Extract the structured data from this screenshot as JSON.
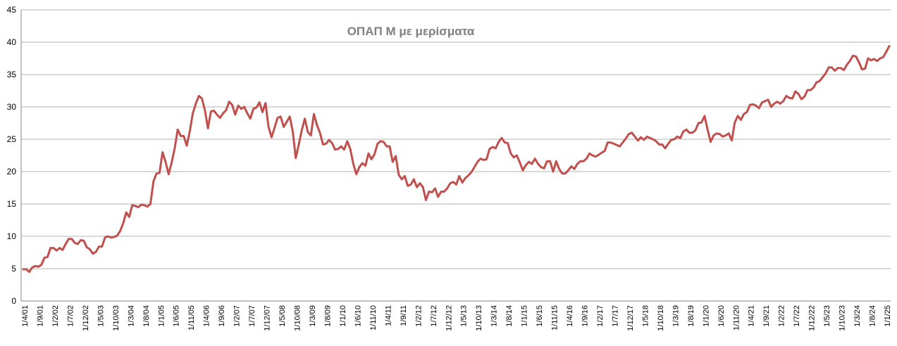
{
  "chart_data": {
    "type": "line",
    "title": "ΟΠΑΠ Μ με μερίσματα",
    "xlabel": "",
    "ylabel": "",
    "ylim": [
      0,
      45
    ],
    "yticks": [
      0,
      5,
      10,
      15,
      20,
      25,
      30,
      35,
      40,
      45
    ],
    "grid": true,
    "legend": "none",
    "line_color": "#c0504d",
    "x_tick_labels": [
      "1/4/01",
      "1/9/01",
      "1/2/02",
      "1/7/02",
      "1/12/02",
      "1/5/03",
      "1/10/03",
      "1/3/04",
      "1/8/04",
      "1/1/05",
      "1/6/05",
      "1/11/05",
      "1/4/06",
      "1/9/06",
      "1/2/07",
      "1/7/07",
      "1/12/07",
      "1/5/08",
      "1/10/08",
      "1/3/09",
      "1/8/09",
      "1/1/10",
      "1/6/10",
      "1/11/10",
      "1/4/11",
      "1/9/11",
      "1/2/12",
      "1/7/12",
      "1/12/12",
      "1/5/13",
      "1/10/13",
      "1/3/14",
      "1/8/14",
      "1/1/15",
      "1/6/15",
      "1/11/15",
      "1/4/16",
      "1/9/16",
      "1/2/17",
      "1/7/17",
      "1/12/17",
      "1/5/18",
      "1/10/18",
      "1/3/19",
      "1/8/19",
      "1/1/20",
      "1/6/20",
      "1/11/20",
      "1/4/21",
      "1/9/21",
      "1/2/22",
      "1/7/22",
      "1/12/22",
      "1/5/23",
      "1/10/23",
      "1/3/24",
      "1/8/24",
      "1/1/25"
    ],
    "series": [
      {
        "values": [
          4.9,
          4.9,
          4.5,
          5.2,
          5.4,
          5.3,
          5.6,
          6.7,
          6.8,
          8.2,
          8.2,
          7.8,
          8.2,
          7.9,
          8.8,
          9.6,
          9.6,
          9.0,
          8.8,
          9.4,
          9.3,
          8.3,
          8.0,
          7.3,
          7.6,
          8.4,
          8.4,
          9.8,
          10.0,
          9.8,
          9.9,
          10.1,
          10.8,
          12.0,
          13.7,
          13.0,
          14.8,
          14.7,
          14.5,
          14.9,
          14.8,
          14.6,
          15.0,
          18.5,
          19.7,
          19.8,
          23.0,
          21.5,
          19.6,
          21.4,
          23.6,
          26.5,
          25.5,
          25.5,
          24.0,
          26.2,
          29.0,
          30.5,
          31.7,
          31.3,
          29.5,
          26.7,
          29.3,
          29.4,
          28.8,
          28.3,
          29.0,
          29.5,
          30.8,
          30.3,
          28.8,
          30.2,
          29.7,
          30.0,
          29.0,
          28.2,
          29.7,
          29.9,
          30.7,
          29.2,
          30.6,
          26.9,
          25.3,
          26.8,
          28.3,
          28.5,
          26.9,
          27.7,
          28.5,
          26.2,
          22.1,
          24.2,
          26.4,
          28.2,
          26.1,
          25.6,
          28.9,
          27.2,
          26.0,
          24.2,
          24.3,
          24.9,
          24.4,
          23.4,
          23.5,
          23.9,
          23.4,
          24.7,
          23.5,
          21.2,
          19.6,
          20.7,
          21.3,
          20.9,
          22.8,
          21.9,
          22.7,
          24.3,
          24.7,
          24.6,
          23.9,
          23.9,
          21.5,
          22.4,
          19.5,
          18.8,
          19.3,
          17.8,
          18.0,
          18.8,
          17.6,
          18.2,
          17.6,
          15.6,
          16.9,
          16.8,
          17.4,
          16.1,
          16.9,
          16.9,
          17.4,
          18.2,
          18.4,
          18.0,
          19.3,
          18.3,
          19.0,
          19.4,
          19.9,
          20.7,
          21.5,
          22.0,
          21.8,
          21.9,
          23.5,
          23.8,
          23.6,
          24.6,
          25.2,
          24.5,
          24.4,
          22.8,
          22.2,
          22.5,
          21.4,
          20.2,
          21.0,
          21.5,
          21.2,
          22.0,
          21.2,
          20.7,
          20.5,
          21.6,
          21.6,
          20.0,
          21.6,
          20.4,
          19.7,
          19.7,
          20.2,
          20.8,
          20.4,
          21.2,
          21.6,
          21.6,
          22.0,
          22.8,
          22.5,
          22.3,
          22.6,
          22.9,
          23.2,
          24.5,
          24.5,
          24.3,
          24.1,
          23.9,
          24.5,
          25.1,
          25.8,
          26.0,
          25.4,
          24.8,
          25.3,
          24.9,
          25.4,
          25.2,
          25.0,
          24.7,
          24.2,
          24.2,
          23.6,
          24.3,
          24.9,
          25.0,
          25.4,
          25.2,
          26.2,
          26.5,
          26.0,
          26.0,
          26.4,
          27.5,
          27.6,
          28.6,
          26.5,
          24.6,
          25.6,
          25.9,
          25.8,
          25.4,
          25.6,
          25.9,
          24.8,
          27.6,
          28.6,
          28.0,
          28.9,
          29.2,
          30.3,
          30.4,
          30.2,
          29.8,
          30.7,
          30.9,
          31.1,
          30.0,
          30.5,
          30.8,
          30.5,
          30.9,
          31.7,
          31.4,
          31.3,
          32.4,
          32.0,
          31.2,
          31.6,
          32.6,
          32.6,
          33.0,
          33.8,
          34.0,
          34.6,
          35.2,
          36.1,
          36.1,
          35.6,
          36.0,
          36.0,
          35.7,
          36.5,
          37.1,
          37.9,
          37.8,
          36.9,
          35.8,
          35.9,
          37.5,
          37.2,
          37.4,
          37.1,
          37.5,
          37.7,
          38.5,
          39.4
        ]
      }
    ]
  }
}
